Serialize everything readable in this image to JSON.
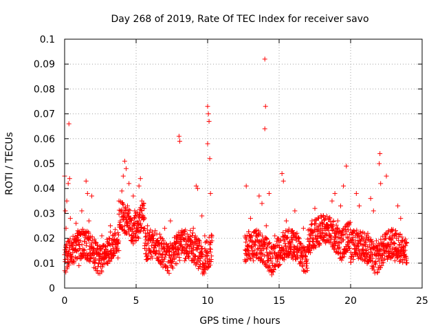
{
  "chart_data": {
    "type": "scatter",
    "title": "Day 268 of 2019, Rate Of TEC Index for receiver savo",
    "xlabel": "GPS time / hours",
    "ylabel": "ROTI / TECUs",
    "xlim": [
      0,
      25
    ],
    "ylim": [
      0,
      0.1
    ],
    "xticks": [
      "0",
      "5",
      "10",
      "15",
      "20",
      "25"
    ],
    "yticks": [
      "0",
      "0.01",
      "0.02",
      "0.03",
      "0.04",
      "0.05",
      "0.06",
      "0.07",
      "0.08",
      "0.09",
      "0.1"
    ],
    "grid": true,
    "marker": "+",
    "color": "#ff0000",
    "series": [
      {
        "points": [
          [
            0.0,
            0.045
          ],
          [
            0.05,
            0.031
          ],
          [
            0.1,
            0.024
          ],
          [
            0.15,
            0.035
          ],
          [
            0.2,
            0.013
          ],
          [
            0.25,
            0.042
          ],
          [
            0.3,
            0.066
          ],
          [
            0.35,
            0.044
          ],
          [
            0.4,
            0.028
          ],
          [
            0.5,
            0.018
          ],
          [
            0.6,
            0.011
          ],
          [
            0.7,
            0.015
          ],
          [
            0.8,
            0.026
          ],
          [
            0.9,
            0.012
          ],
          [
            1.0,
            0.009
          ],
          [
            1.1,
            0.019
          ],
          [
            1.2,
            0.031
          ],
          [
            1.3,
            0.022
          ],
          [
            1.4,
            0.014
          ],
          [
            1.5,
            0.043
          ],
          [
            1.6,
            0.038
          ],
          [
            1.7,
            0.027
          ],
          [
            1.8,
            0.012
          ],
          [
            1.9,
            0.037
          ],
          [
            2.0,
            0.016
          ],
          [
            2.1,
            0.011
          ],
          [
            2.2,
            0.018
          ],
          [
            2.4,
            0.014
          ],
          [
            2.6,
            0.021
          ],
          [
            2.8,
            0.012
          ],
          [
            3.0,
            0.017
          ],
          [
            3.2,
            0.025
          ],
          [
            3.4,
            0.013
          ],
          [
            3.6,
            0.019
          ],
          [
            3.8,
            0.035
          ],
          [
            4.0,
            0.039
          ],
          [
            4.1,
            0.045
          ],
          [
            4.2,
            0.051
          ],
          [
            4.3,
            0.048
          ],
          [
            4.4,
            0.033
          ],
          [
            4.5,
            0.042
          ],
          [
            4.6,
            0.028
          ],
          [
            4.7,
            0.021
          ],
          [
            4.8,
            0.037
          ],
          [
            4.9,
            0.031
          ],
          [
            5.0,
            0.019
          ],
          [
            5.1,
            0.026
          ],
          [
            5.2,
            0.041
          ],
          [
            5.3,
            0.044
          ],
          [
            5.4,
            0.035
          ],
          [
            5.5,
            0.023
          ],
          [
            5.6,
            0.017
          ],
          [
            5.8,
            0.025
          ],
          [
            6.0,
            0.012
          ],
          [
            6.2,
            0.019
          ],
          [
            6.4,
            0.014
          ],
          [
            6.6,
            0.011
          ],
          [
            6.8,
            0.018
          ],
          [
            7.0,
            0.024
          ],
          [
            7.2,
            0.015
          ],
          [
            7.4,
            0.027
          ],
          [
            7.6,
            0.013
          ],
          [
            7.8,
            0.021
          ],
          [
            8.0,
            0.061
          ],
          [
            8.05,
            0.059
          ],
          [
            8.2,
            0.016
          ],
          [
            8.4,
            0.011
          ],
          [
            8.6,
            0.014
          ],
          [
            8.8,
            0.019
          ],
          [
            9.0,
            0.024
          ],
          [
            9.2,
            0.041
          ],
          [
            9.3,
            0.04
          ],
          [
            9.4,
            0.013
          ],
          [
            9.6,
            0.029
          ],
          [
            9.8,
            0.021
          ],
          [
            10.0,
            0.073
          ],
          [
            10.05,
            0.07
          ],
          [
            10.1,
            0.067
          ],
          [
            10.0,
            0.058
          ],
          [
            10.15,
            0.052
          ],
          [
            10.2,
            0.038
          ],
          [
            10.3,
            0.019
          ],
          [
            12.7,
            0.041
          ],
          [
            12.8,
            0.015
          ],
          [
            13.0,
            0.028
          ],
          [
            13.2,
            0.011
          ],
          [
            13.4,
            0.022
          ],
          [
            13.6,
            0.037
          ],
          [
            13.8,
            0.034
          ],
          [
            14.0,
            0.092
          ],
          [
            14.05,
            0.073
          ],
          [
            14.0,
            0.064
          ],
          [
            14.1,
            0.025
          ],
          [
            14.3,
            0.038
          ],
          [
            14.5,
            0.016
          ],
          [
            14.7,
            0.021
          ],
          [
            14.9,
            0.013
          ],
          [
            15.1,
            0.019
          ],
          [
            15.2,
            0.046
          ],
          [
            15.3,
            0.043
          ],
          [
            15.5,
            0.027
          ],
          [
            15.7,
            0.014
          ],
          [
            15.9,
            0.022
          ],
          [
            16.1,
            0.031
          ],
          [
            16.3,
            0.012
          ],
          [
            16.5,
            0.018
          ],
          [
            16.7,
            0.024
          ],
          [
            16.9,
            0.011
          ],
          [
            17.1,
            0.016
          ],
          [
            17.3,
            0.027
          ],
          [
            17.5,
            0.032
          ],
          [
            17.7,
            0.019
          ],
          [
            17.9,
            0.022
          ],
          [
            18.1,
            0.029
          ],
          [
            18.3,
            0.024
          ],
          [
            18.5,
            0.021
          ],
          [
            18.7,
            0.035
          ],
          [
            18.9,
            0.038
          ],
          [
            19.1,
            0.027
          ],
          [
            19.3,
            0.033
          ],
          [
            19.5,
            0.041
          ],
          [
            19.7,
            0.049
          ],
          [
            19.8,
            0.026
          ],
          [
            20.0,
            0.012
          ],
          [
            20.2,
            0.018
          ],
          [
            20.4,
            0.038
          ],
          [
            20.6,
            0.033
          ],
          [
            20.8,
            0.015
          ],
          [
            21.0,
            0.011
          ],
          [
            21.2,
            0.022
          ],
          [
            21.4,
            0.036
          ],
          [
            21.6,
            0.031
          ],
          [
            21.8,
            0.019
          ],
          [
            22.0,
            0.05
          ],
          [
            22.05,
            0.054
          ],
          [
            22.1,
            0.042
          ],
          [
            22.2,
            0.018
          ],
          [
            22.5,
            0.045
          ],
          [
            22.7,
            0.013
          ],
          [
            22.9,
            0.021
          ],
          [
            23.1,
            0.011
          ],
          [
            23.3,
            0.033
          ],
          [
            23.5,
            0.028
          ],
          [
            23.7,
            0.016
          ],
          [
            23.9,
            0.012
          ]
        ]
      }
    ]
  }
}
